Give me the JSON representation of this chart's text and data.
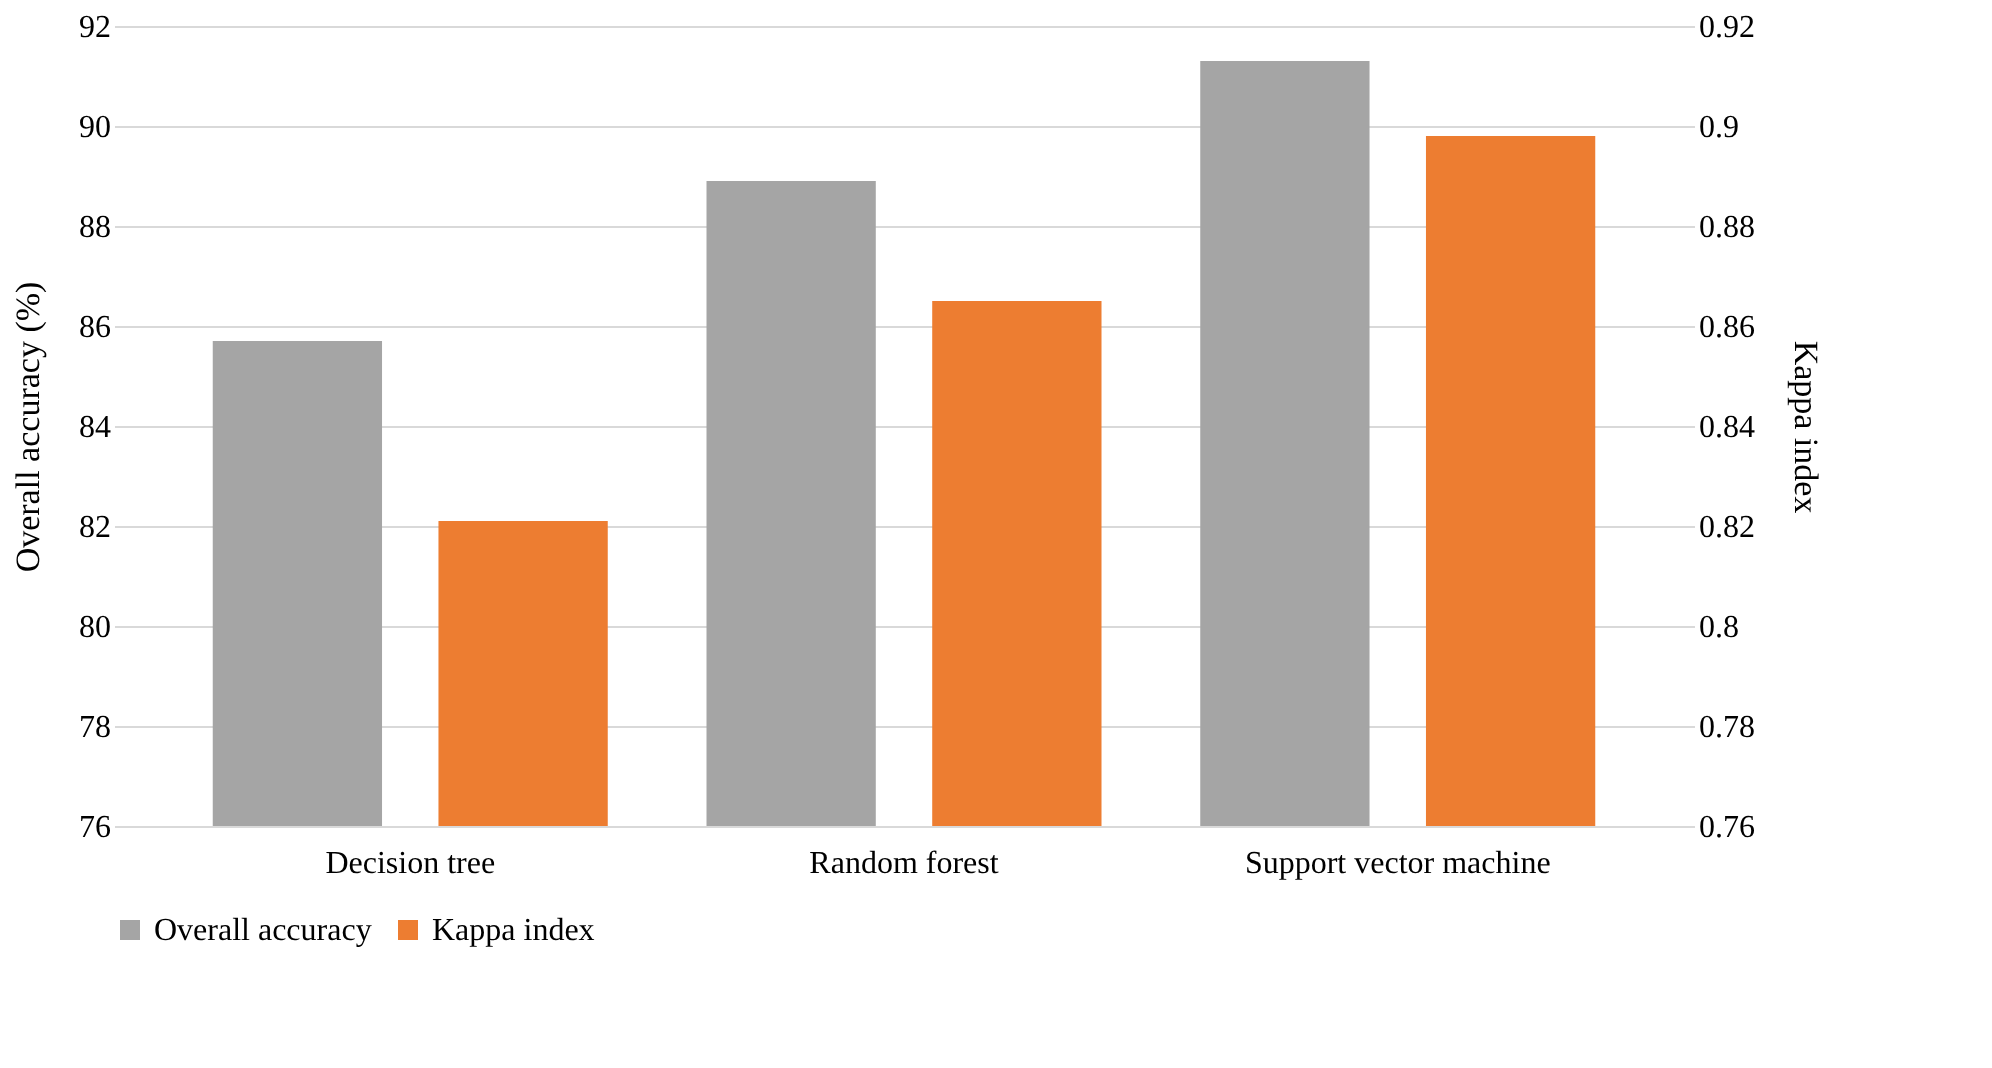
{
  "chart_data": {
    "type": "bar",
    "categories": [
      "Decision tree",
      "Random forest",
      "Support vector machine"
    ],
    "ylabel": "Overall accuracy (%)",
    "y2label": "Kappa index",
    "series": [
      {
        "name": "Overall accuracy",
        "color": "#a5a5a5",
        "values": [
          85.7,
          88.9,
          91.3
        ]
      },
      {
        "name": "Kappa index",
        "color": "#ed7d31",
        "values": [
          0.821,
          0.865,
          0.898
        ],
        "axis": "y2"
      }
    ],
    "ylim": [
      76,
      92
    ],
    "yticks": [
      76,
      78,
      80,
      82,
      84,
      86,
      88,
      90,
      92
    ],
    "y2lim": [
      0.76,
      0.92
    ],
    "y2ticks": [
      0.76,
      0.78,
      0.8,
      0.82,
      0.84,
      0.86,
      0.88,
      0.9,
      0.92
    ],
    "grid": "y",
    "legend": "bottom"
  }
}
